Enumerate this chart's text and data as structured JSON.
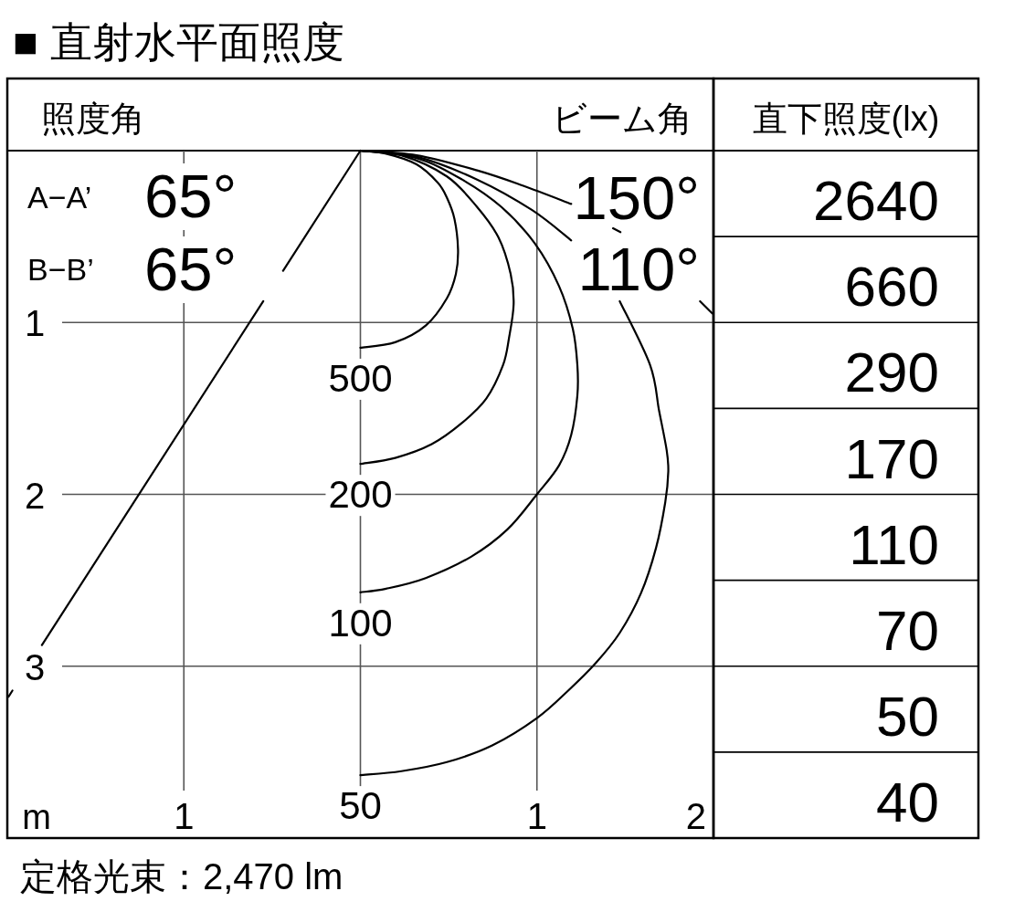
{
  "chart_data": [
    {
      "type": "line",
      "title": "■ 直射水平面照度",
      "xlabel": "m",
      "xlim": [
        -2,
        2
      ],
      "ylim": [
        4,
        0
      ],
      "xticks": [
        {
          "value": -1,
          "label": "1"
        },
        {
          "value": 0,
          "label": null
        },
        {
          "value": 1,
          "label": "1"
        },
        {
          "value": 2,
          "label": "2"
        }
      ],
      "yticks": [
        1,
        2,
        3
      ],
      "grid": true,
      "annotations": [
        "照度角",
        "ビーム角",
        "A−A’",
        "65°",
        "B−B’",
        "65°",
        "150°",
        "110°",
        "定格光束：2,470 lm"
      ],
      "series": [
        {
          "name": "500",
          "color": "#000000",
          "x": [
            0,
            0.146,
            0.318,
            0.438,
            0.49,
            0.533,
            0.553,
            0.541,
            0.49,
            0.37,
            0.197,
            0
          ],
          "values": [
            0,
            0.018,
            0.08,
            0.186,
            0.274,
            0.398,
            0.575,
            0.717,
            0.859,
            1.018,
            1.115,
            1.147
          ]
        },
        {
          "name": "200",
          "color": "#000000",
          "x": [
            0,
            0.232,
            0.49,
            0.661,
            0.782,
            0.851,
            0.868,
            0.842,
            0.808,
            0.713,
            0.576,
            0.404,
            0.197,
            0
          ],
          "values": [
            0,
            0.027,
            0.15,
            0.328,
            0.505,
            0.717,
            0.894,
            1.089,
            1.248,
            1.443,
            1.584,
            1.708,
            1.788,
            1.823
          ]
        },
        {
          "name": "100",
          "color": "#000000",
          "x": [
            0,
            0.318,
            0.576,
            0.799,
            0.988,
            1.125,
            1.203,
            1.229,
            1.229,
            1.194,
            1.125,
            1.0,
            0.833,
            0.627,
            0.37,
            0.146,
            0
          ],
          "values": [
            0,
            0.044,
            0.168,
            0.328,
            0.54,
            0.788,
            1.036,
            1.248,
            1.425,
            1.655,
            1.832,
            2.0,
            2.204,
            2.363,
            2.487,
            2.549,
            2.57
          ]
        },
        {
          "name": "50",
          "color": "#000000",
          "x": [
            0,
            0.318,
            0.661,
            0.971,
            1.194,
            null,
            1.469,
            1.641,
            1.692,
            1.735,
            1.744,
            1.727,
            1.675,
            1.589,
            1.469,
            1.332,
            1.177,
            1.0,
            0.747,
            0.49,
            0.232,
            0
          ],
          "values": [
            0,
            0.035,
            0.168,
            0.345,
            0.522,
            null,
            0.876,
            1.248,
            1.514,
            1.744,
            1.868,
            2.045,
            2.31,
            2.576,
            2.806,
            2.983,
            3.142,
            3.302,
            3.461,
            3.558,
            3.611,
            3.634
          ]
        },
        {
          "color": "#000000",
          "x": [
            0,
            0.318,
            0.661,
            0.919,
            1.194,
            null,
            1.431,
            1.473,
            null,
            1.924,
            1.993
          ],
          "values": [
            0,
            0.027,
            0.115,
            0.203,
            0.31,
            null,
            0.452,
            0.474,
            null,
            0.876,
            0.947
          ]
        },
        {
          "color": "#000000",
          "x": [
            0,
            -0.438,
            null,
            -0.55,
            -1.804,
            null,
            -1.971,
            -1.993
          ],
          "values": [
            0,
            0.699,
            null,
            0.876,
            2.877,
            null,
            3.142,
            3.177
          ]
        }
      ]
    },
    {
      "type": "other",
      "title": "直下照度(lx)",
      "values": [
        2640,
        660,
        290,
        170,
        110,
        70,
        50,
        40
      ],
      "data_labels": true
    }
  ]
}
